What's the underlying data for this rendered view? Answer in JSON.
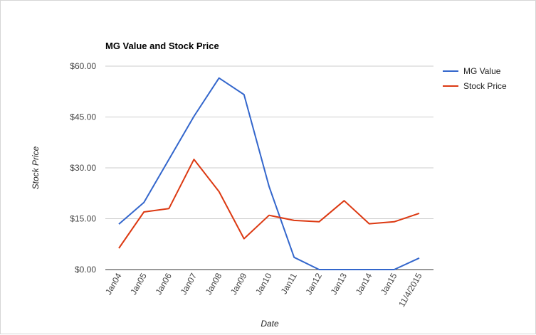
{
  "chart_data": {
    "type": "line",
    "title": "MG Value and Stock Price",
    "xlabel": "Date",
    "ylabel": "Stock Price",
    "categories": [
      "Jan04",
      "Jan05",
      "Jan06",
      "Jan07",
      "Jan08",
      "Jan09",
      "Jan10",
      "Jan11",
      "Jan12",
      "Jan13",
      "Jan14",
      "Jan15",
      "11/4/2015"
    ],
    "y_ticks": [
      "$0.00",
      "$15.00",
      "$30.00",
      "$45.00",
      "$60.00"
    ],
    "ylim": [
      0,
      60
    ],
    "grid": true,
    "legend_position": "top-right",
    "series": [
      {
        "name": "MG Value",
        "color": "#3366cc",
        "values": [
          13.4,
          19.8,
          32.5,
          45.2,
          56.5,
          51.6,
          24.5,
          3.6,
          0,
          0,
          0,
          0,
          3.4
        ]
      },
      {
        "name": "Stock Price",
        "color": "#dc3912",
        "values": [
          6.3,
          17.0,
          18.0,
          32.5,
          23.0,
          9.1,
          16.0,
          14.5,
          14.1,
          20.3,
          13.5,
          14.1,
          16.6
        ]
      }
    ]
  }
}
